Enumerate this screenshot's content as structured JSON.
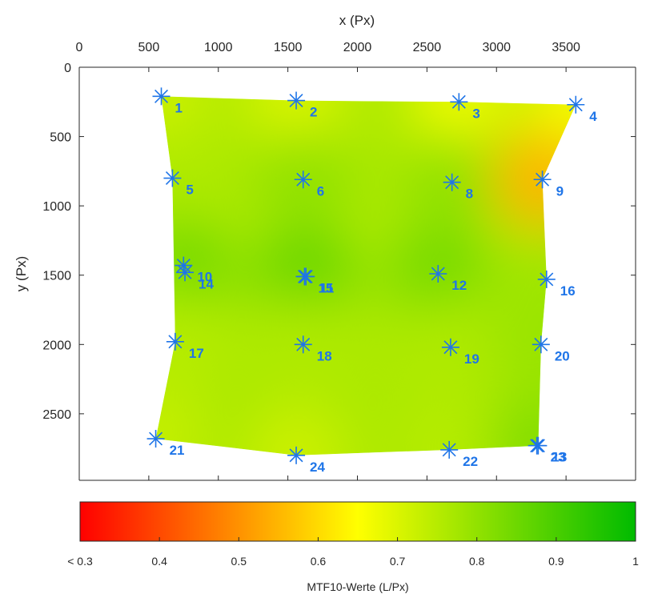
{
  "chart_data": {
    "type": "heatmap",
    "xlabel": "x (Px)",
    "ylabel": "y (Px)",
    "x_ticks": [
      0,
      500,
      1000,
      1500,
      2000,
      2500,
      3000,
      3500
    ],
    "y_ticks": [
      0,
      500,
      1000,
      1500,
      2000,
      2500
    ],
    "xlim": [
      0,
      4000
    ],
    "ylim": [
      0,
      2980
    ],
    "x_axis_position": "top",
    "y_axis_direction": "reversed",
    "grid": false,
    "colormap": {
      "label": "MTF10-Werte (L/Px)",
      "ticks": [
        "< 0.3",
        "0.4",
        "0.5",
        "0.6",
        "0.7",
        "0.8",
        "0.9",
        "1"
      ],
      "range": [
        0.3,
        1.0
      ],
      "stops": [
        {
          "value": 0.3,
          "color": "#ff0000"
        },
        {
          "value": 0.65,
          "color": "#ffff00"
        },
        {
          "value": 1.0,
          "color": "#00bb00"
        }
      ]
    },
    "marker_color": "#1f75e8",
    "points": [
      {
        "label": "1",
        "x": 590,
        "y": 210,
        "mtf": 0.72
      },
      {
        "label": "2",
        "x": 1560,
        "y": 240,
        "mtf": 0.7
      },
      {
        "label": "3",
        "x": 2730,
        "y": 250,
        "mtf": 0.67
      },
      {
        "label": "4",
        "x": 3570,
        "y": 270,
        "mtf": 0.66
      },
      {
        "label": "5",
        "x": 670,
        "y": 800,
        "mtf": 0.76
      },
      {
        "label": "6",
        "x": 1610,
        "y": 810,
        "mtf": 0.8
      },
      {
        "label": "8",
        "x": 2680,
        "y": 830,
        "mtf": 0.8
      },
      {
        "label": "9",
        "x": 3330,
        "y": 810,
        "mtf": 0.55
      },
      {
        "label": "10",
        "x": 750,
        "y": 1430,
        "mtf": 0.82
      },
      {
        "label": "14",
        "x": 760,
        "y": 1480,
        "mtf": 0.84
      },
      {
        "label": "11",
        "x": 1630,
        "y": 1510,
        "mtf": 0.86
      },
      {
        "label": "15",
        "x": 1620,
        "y": 1510,
        "mtf": 0.86
      },
      {
        "label": "12",
        "x": 2580,
        "y": 1490,
        "mtf": 0.84
      },
      {
        "label": "16",
        "x": 3360,
        "y": 1530,
        "mtf": 0.78
      },
      {
        "label": "17",
        "x": 690,
        "y": 1980,
        "mtf": 0.75
      },
      {
        "label": "18",
        "x": 1610,
        "y": 2000,
        "mtf": 0.76
      },
      {
        "label": "19",
        "x": 2670,
        "y": 2020,
        "mtf": 0.76
      },
      {
        "label": "20",
        "x": 3320,
        "y": 2000,
        "mtf": 0.79
      },
      {
        "label": "21",
        "x": 550,
        "y": 2680,
        "mtf": 0.73
      },
      {
        "label": "24",
        "x": 1560,
        "y": 2800,
        "mtf": 0.72
      },
      {
        "label": "22",
        "x": 2660,
        "y": 2760,
        "mtf": 0.75
      },
      {
        "label": "23",
        "x": 3290,
        "y": 2730,
        "mtf": 0.82
      },
      {
        "label": "13",
        "x": 3300,
        "y": 2730,
        "mtf": 0.82
      }
    ]
  }
}
